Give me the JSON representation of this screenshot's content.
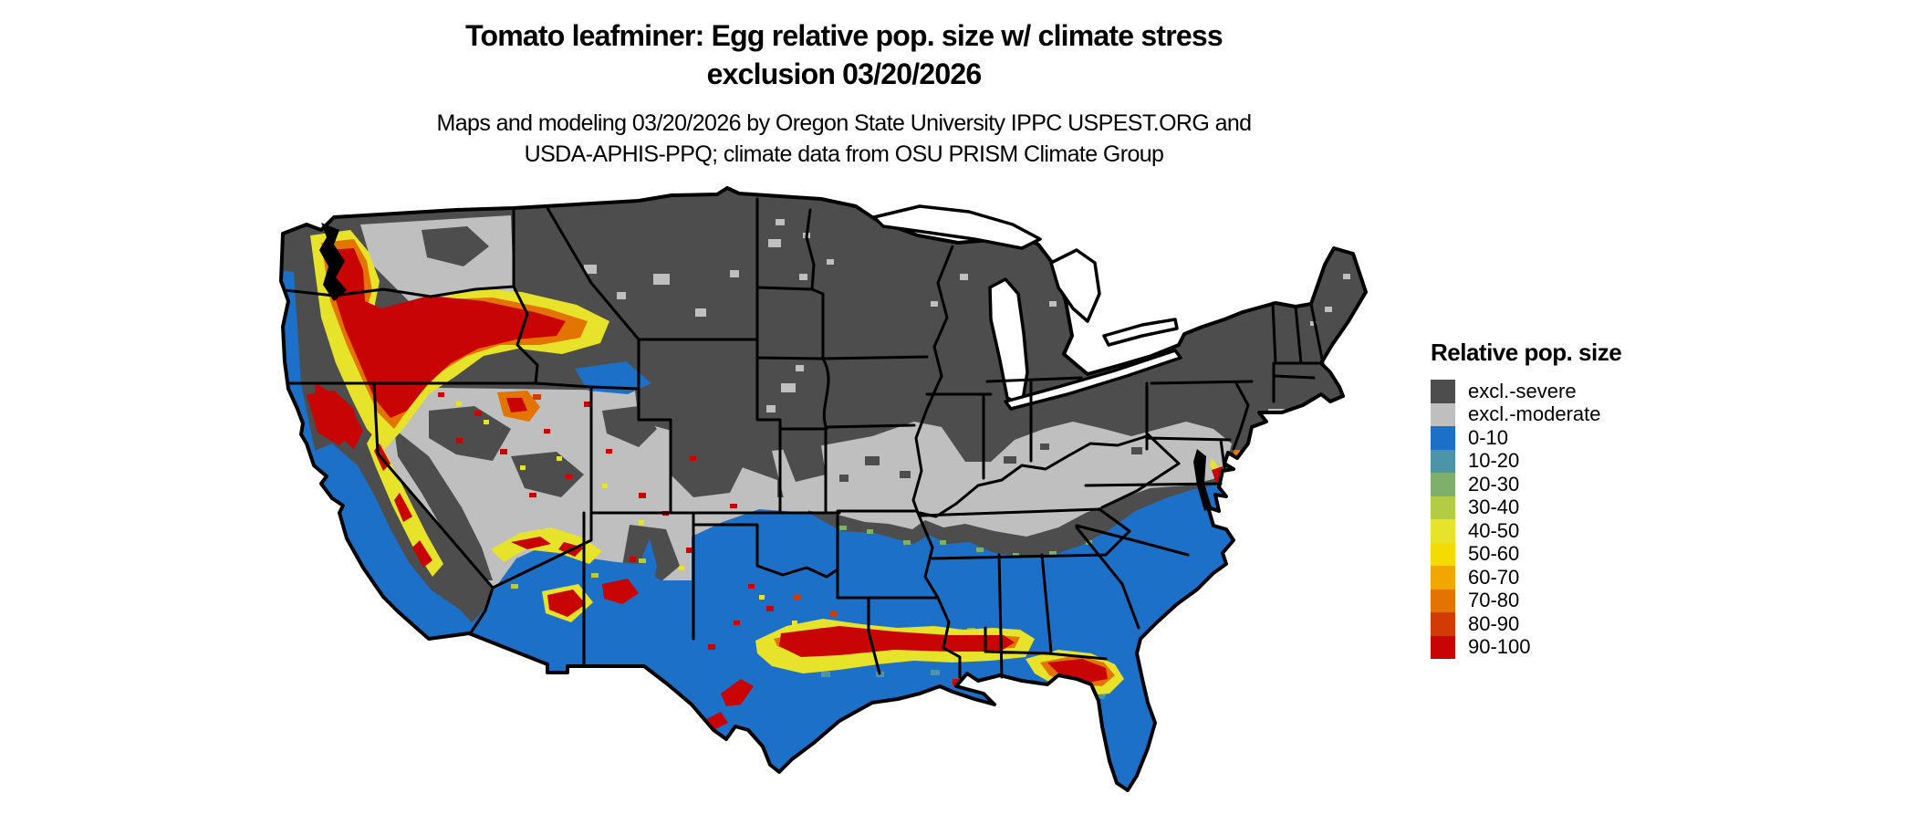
{
  "page": {
    "background": "#ffffff"
  },
  "title": {
    "line1": "Tomato leafminer: Egg relative pop. size w/ climate stress",
    "line2": "exclusion 03/20/2026"
  },
  "subtitle": {
    "line1": "Maps and modeling 03/20/2026 by Oregon State University IPPC USPEST.ORG and",
    "line2": "USDA-APHIS-PPQ; climate data from OSU PRISM Climate Group"
  },
  "legend": {
    "title": "Relative pop. size",
    "entries": [
      {
        "label": "excl.-severe",
        "color": "#4d4d4d"
      },
      {
        "label": "excl.-moderate",
        "color": "#bfbfbf"
      },
      {
        "label": "0-10",
        "color": "#1c70c8"
      },
      {
        "label": "10-20",
        "color": "#4e94a8"
      },
      {
        "label": "20-30",
        "color": "#7fb06b"
      },
      {
        "label": "30-40",
        "color": "#b4cc43"
      },
      {
        "label": "40-50",
        "color": "#e7e32a"
      },
      {
        "label": "50-60",
        "color": "#f5dc00"
      },
      {
        "label": "60-70",
        "color": "#f0a800"
      },
      {
        "label": "70-80",
        "color": "#e37400"
      },
      {
        "label": "80-90",
        "color": "#d33b05"
      },
      {
        "label": "90-100",
        "color": "#c80404"
      }
    ]
  },
  "map": {
    "type": "choropleth-raster",
    "area": "Continental United States with state boundaries",
    "background": "#ffffff",
    "boundary_color": "#000000",
    "regions": [
      {
        "region": "Northern US (Montana, Dakotas, Great Lakes states, Northeast)",
        "category": "excl.-severe"
      },
      {
        "region": "Central band (Great Basin, central Plains, Ohio Valley, Mid-Atlantic)",
        "category": "excl.-moderate"
      },
      {
        "region": "Southern US (California valleys, desert Southwest, Texas, Gulf states, Florida, south Atlantic coast)",
        "category": "0-10"
      },
      {
        "region": "Western Washington / western Oregon and Cascades",
        "category": "50-100 hotspot"
      },
      {
        "region": "Sierra Nevada foothills and northern California coast ranges",
        "category": "40-100 fringe"
      },
      {
        "region": "Central Arizona Mogollon Rim and Wasatch/Salt Lake area",
        "category": "60-100 patches"
      },
      {
        "region": "Central Texas through Louisiana Gulf band",
        "category": "60-100 hotspot"
      },
      {
        "region": "Florida Panhandle / Big Bend",
        "category": "60-100 hotspot"
      },
      {
        "region": "Delmarva coast and Florida Keys",
        "category": "small 80-100 spots"
      }
    ]
  }
}
